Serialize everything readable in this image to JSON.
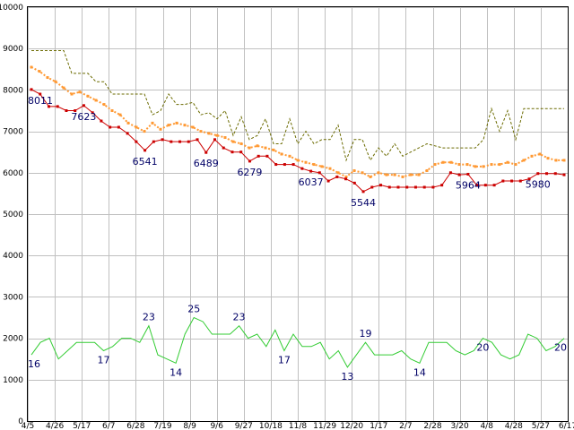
{
  "chart_data": {
    "type": "line",
    "y_axis": {
      "min": 0,
      "max": 10000,
      "ticks": [
        0,
        1000,
        2000,
        3000,
        4000,
        5000,
        6000,
        7000,
        8000,
        9000,
        10000
      ]
    },
    "x_ticks": [
      "4/5",
      "4/26",
      "5/17",
      "6/7",
      "6/28",
      "7/19",
      "8/9",
      "9/6",
      "9/27",
      "10/18",
      "11/8",
      "11/29",
      "12/20",
      "1/17",
      "2/7",
      "2/28",
      "3/20",
      "4/8",
      "4/28",
      "5/27",
      "6/17"
    ],
    "grid": true,
    "legend": "none",
    "series": [
      {
        "key": "dotted-upper",
        "color": "#6b6b00",
        "style": "dashed",
        "values": [
          8950,
          8950,
          8950,
          8950,
          8950,
          8400,
          8400,
          8400,
          8200,
          8200,
          7900,
          7900,
          7900,
          7900,
          7900,
          7400,
          7500,
          7900,
          7650,
          7650,
          7700,
          7400,
          7450,
          7300,
          7500,
          6900,
          7350,
          6800,
          6900,
          7300,
          6700,
          6700,
          7300,
          6700,
          7000,
          6700,
          6800,
          6800,
          7150,
          6300,
          6800,
          6800,
          6300,
          6600,
          6400,
          6700,
          6400,
          6500,
          6600,
          6700,
          6650,
          6600,
          6600,
          6600,
          6600,
          6600,
          6800,
          7550,
          7000,
          7500,
          6800,
          7550,
          7550,
          7550,
          7550,
          7550,
          7550
        ]
      },
      {
        "key": "orange-middle",
        "color": "#ff9933",
        "style": "dotted",
        "values": [
          8550,
          8450,
          8300,
          8200,
          8050,
          7900,
          7950,
          7850,
          7750,
          7650,
          7500,
          7400,
          7200,
          7100,
          7000,
          7200,
          7050,
          7150,
          7200,
          7150,
          7100,
          7000,
          6950,
          6900,
          6850,
          6750,
          6700,
          6600,
          6650,
          6600,
          6550,
          6450,
          6400,
          6300,
          6250,
          6200,
          6150,
          6100,
          6000,
          5900,
          6050,
          6000,
          5900,
          6000,
          5950,
          5950,
          5900,
          5950,
          5950,
          6050,
          6200,
          6250,
          6250,
          6200,
          6200,
          6150,
          6150,
          6200,
          6200,
          6250,
          6200,
          6300,
          6400,
          6450,
          6350,
          6300,
          6300
        ]
      },
      {
        "key": "red-lower",
        "color": "#cc0000",
        "style": "solid",
        "values": [
          8011,
          7900,
          7600,
          7600,
          7500,
          7500,
          7623,
          7450,
          7250,
          7100,
          7100,
          6950,
          6750,
          6541,
          6750,
          6800,
          6750,
          6750,
          6750,
          6800,
          6489,
          6800,
          6600,
          6500,
          6500,
          6279,
          6400,
          6400,
          6200,
          6200,
          6200,
          6100,
          6037,
          6000,
          5800,
          5900,
          5850,
          5750,
          5544,
          5650,
          5700,
          5650,
          5650,
          5650,
          5650,
          5650,
          5650,
          5700,
          6000,
          5950,
          5964,
          5700,
          5700,
          5700,
          5800,
          5800,
          5800,
          5850,
          5980,
          5980,
          5980,
          5950
        ]
      },
      {
        "key": "green-bottom",
        "color": "#33cc33",
        "style": "solid",
        "values": [
          16,
          19,
          20,
          15,
          17,
          19,
          19,
          19,
          17,
          18,
          20,
          20,
          19,
          23,
          16,
          15,
          14,
          21,
          25,
          24,
          21,
          21,
          21,
          23,
          20,
          21,
          18,
          22,
          17,
          21,
          18,
          18,
          19,
          15,
          17,
          13,
          16,
          19,
          16,
          16,
          16,
          17,
          15,
          14,
          19,
          19,
          19,
          17,
          16,
          17,
          20,
          19,
          16,
          15,
          16,
          21,
          20,
          17,
          18,
          20
        ]
      }
    ],
    "data_labels": [
      {
        "series": "red-lower",
        "index": 0,
        "text": "8011"
      },
      {
        "series": "red-lower",
        "index": 6,
        "text": "7623"
      },
      {
        "series": "red-lower",
        "index": 13,
        "text": "6541"
      },
      {
        "series": "red-lower",
        "index": 20,
        "text": "6489"
      },
      {
        "series": "red-lower",
        "index": 25,
        "text": "6279"
      },
      {
        "series": "red-lower",
        "index": 32,
        "text": "6037"
      },
      {
        "series": "red-lower",
        "index": 38,
        "text": "5544"
      },
      {
        "series": "red-lower",
        "index": 50,
        "text": "5964"
      },
      {
        "series": "red-lower",
        "index": 58,
        "text": "5980"
      },
      {
        "series": "green-bottom",
        "index": 0,
        "text": "16"
      },
      {
        "series": "green-bottom",
        "index": 8,
        "text": "17"
      },
      {
        "series": "green-bottom",
        "index": 13,
        "text": "23"
      },
      {
        "series": "green-bottom",
        "index": 16,
        "text": "14"
      },
      {
        "series": "green-bottom",
        "index": 18,
        "text": "25"
      },
      {
        "series": "green-bottom",
        "index": 23,
        "text": "23"
      },
      {
        "series": "green-bottom",
        "index": 28,
        "text": "17"
      },
      {
        "series": "green-bottom",
        "index": 35,
        "text": "13"
      },
      {
        "series": "green-bottom",
        "index": 37,
        "text": "19"
      },
      {
        "series": "green-bottom",
        "index": 43,
        "text": "14"
      },
      {
        "series": "green-bottom",
        "index": 50,
        "text": "20"
      },
      {
        "series": "green-bottom",
        "index": 59,
        "text": "20"
      }
    ]
  }
}
